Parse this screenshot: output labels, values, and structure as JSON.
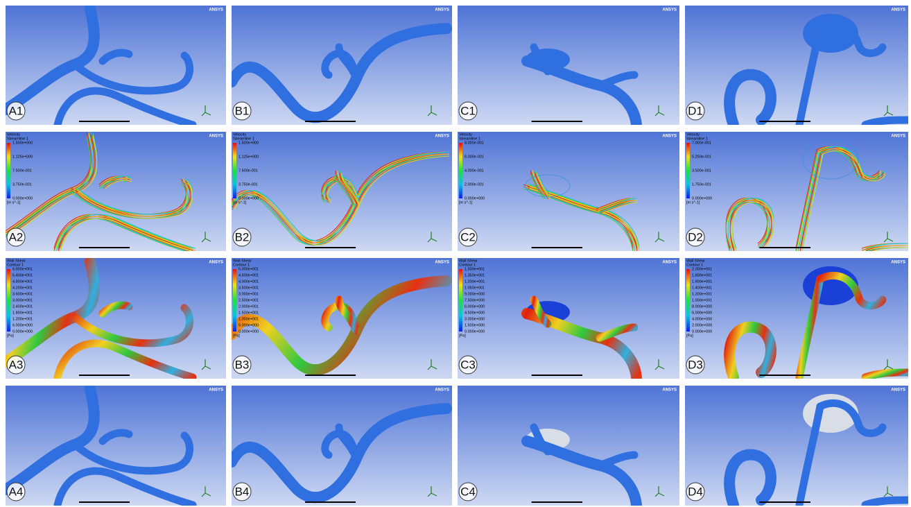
{
  "brand": "ANSYS",
  "panels": [
    {
      "label": "A1"
    },
    {
      "label": "B1"
    },
    {
      "label": "C1"
    },
    {
      "label": "D1"
    },
    {
      "label": "A2",
      "legend": {
        "title": "Velocity",
        "subtitle": "Streamline 1",
        "values": [
          "1.500e+000",
          "1.125e+000",
          "7.500e-001",
          "3.750e-001",
          "0.000e+000"
        ],
        "unit": "[m s^-1]"
      }
    },
    {
      "label": "B2",
      "legend": {
        "title": "Velocity",
        "subtitle": "Streamline 1",
        "values": [
          "1.500e+000",
          "1.125e+000",
          "7.500e-001",
          "3.750e-001",
          "0.000e+000"
        ],
        "unit": "[m s^-1]"
      }
    },
    {
      "label": "C2",
      "legend": {
        "title": "Velocity",
        "subtitle": "Streamline 1",
        "values": [
          "8.000e-001",
          "6.000e-001",
          "4.000e-001",
          "2.000e-001",
          "0.000e+000"
        ],
        "unit": "[m s^-1]"
      }
    },
    {
      "label": "D2",
      "legend": {
        "title": "Velocity",
        "subtitle": "Streamline 1",
        "values": [
          "7.000e-001",
          "5.250e-001",
          "3.500e-001",
          "1.750e-001",
          "0.000e+000"
        ],
        "unit": "[m s^-1]"
      }
    },
    {
      "label": "A3",
      "legend": {
        "title": "Wall Shear",
        "subtitle": "Contour 1",
        "values": [
          "6.000e+001",
          "5.400e+001",
          "4.800e+001",
          "4.200e+001",
          "3.600e+001",
          "3.000e+001",
          "2.400e+001",
          "1.800e+001",
          "1.200e+001",
          "6.000e+000",
          "0.000e+000"
        ],
        "unit": "[Pa]"
      }
    },
    {
      "label": "B3",
      "legend": {
        "title": "Wall Shear",
        "subtitle": "Contour 1",
        "values": [
          "5.000e+001",
          "4.500e+001",
          "4.000e+001",
          "3.500e+001",
          "3.000e+001",
          "2.500e+001",
          "2.000e+001",
          "1.500e+001",
          "1.000e+001",
          "5.000e+000",
          "0.000e+000"
        ],
        "unit": "[Pa]"
      }
    },
    {
      "label": "C3",
      "legend": {
        "title": "Wall Shear",
        "subtitle": "Contour 1",
        "values": [
          "1.500e+001",
          "1.350e+001",
          "1.200e+001",
          "1.050e+001",
          "9.000e+000",
          "7.500e+000",
          "6.000e+000",
          "4.500e+000",
          "3.000e+000",
          "1.500e+000",
          "0.000e+000"
        ],
        "unit": "[Pa]"
      }
    },
    {
      "label": "D3",
      "legend": {
        "title": "Wall Shear",
        "subtitle": "Contour 1",
        "values": [
          "2.000e+001",
          "1.800e+001",
          "1.600e+001",
          "1.400e+001",
          "1.200e+001",
          "1.000e+001",
          "8.000e+000",
          "6.000e+000",
          "4.000e+000",
          "2.000e+000",
          "0.000e+000"
        ],
        "unit": "[Pa]"
      }
    },
    {
      "label": "A4"
    },
    {
      "label": "B4"
    },
    {
      "label": "C4"
    },
    {
      "label": "D4"
    }
  ]
}
